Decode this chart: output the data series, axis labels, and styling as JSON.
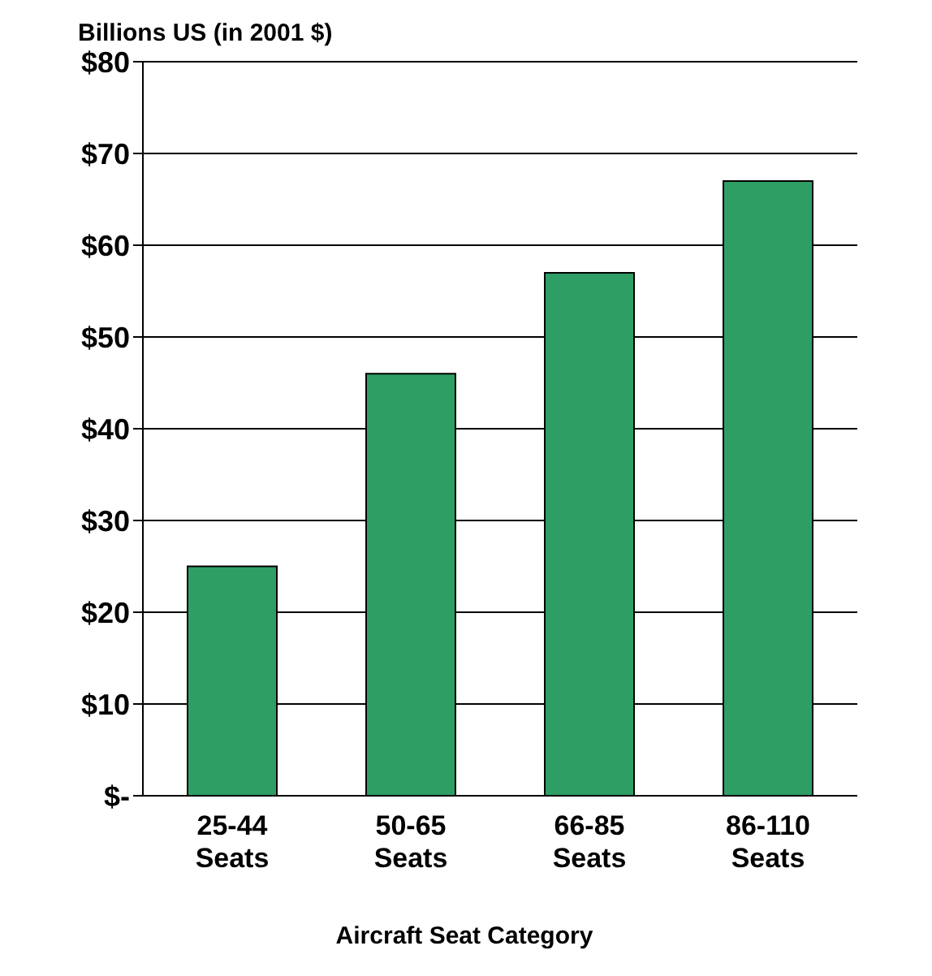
{
  "chart_data": {
    "type": "bar",
    "ylabel": "Billions US (in 2001 $)",
    "xlabel": "Aircraft Seat Category",
    "categories": [
      "25-44 Seats",
      "50-65 Seats",
      "66-85 Seats",
      "86-110 Seats"
    ],
    "values": [
      25,
      46,
      57,
      67
    ],
    "color": "#2f9e65",
    "ylim": [
      0,
      80
    ],
    "yticks": [
      {
        "value": 0,
        "label": "$-"
      },
      {
        "value": 10,
        "label": "$10"
      },
      {
        "value": 20,
        "label": "$20"
      },
      {
        "value": 30,
        "label": "$30"
      },
      {
        "value": 40,
        "label": "$40"
      },
      {
        "value": 50,
        "label": "$50"
      },
      {
        "value": 60,
        "label": "$60"
      },
      {
        "value": 70,
        "label": "$70"
      },
      {
        "value": 80,
        "label": "$80"
      }
    ],
    "grid": "y"
  }
}
